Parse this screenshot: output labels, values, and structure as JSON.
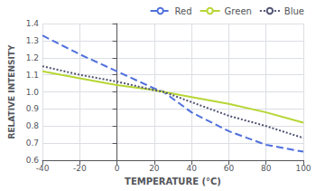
{
  "chart_data": {
    "type": "line",
    "xlabel": "TEMPERATURE (°C)",
    "ylabel": "RELATIVE INTENSITY",
    "x": [
      -40,
      -20,
      0,
      20,
      25,
      40,
      60,
      80,
      100
    ],
    "series": [
      {
        "name": "Red",
        "line_style": "dashed",
        "values": [
          1.33,
          1.22,
          1.12,
          1.02,
          1.0,
          0.88,
          0.77,
          0.69,
          0.65
        ]
      },
      {
        "name": "Green",
        "line_style": "solid",
        "values": [
          1.12,
          1.08,
          1.04,
          1.01,
          1.0,
          0.97,
          0.93,
          0.88,
          0.82
        ]
      },
      {
        "name": "Blue",
        "line_style": "dotted",
        "values": [
          1.15,
          1.1,
          1.06,
          1.01,
          1.0,
          0.94,
          0.86,
          0.8,
          0.73
        ]
      }
    ],
    "xlim": [
      -40,
      100
    ],
    "ylim": [
      0.6,
      1.4
    ],
    "xticks": [
      -40,
      -20,
      0,
      20,
      40,
      60,
      80,
      100
    ],
    "yticks": [
      0.6,
      0.7,
      0.8,
      0.9,
      {
        "value": 1,
        "label": "1.0"
      },
      1.1,
      1.2,
      1.3,
      1.4
    ],
    "grid": true,
    "legend": "upper right"
  }
}
